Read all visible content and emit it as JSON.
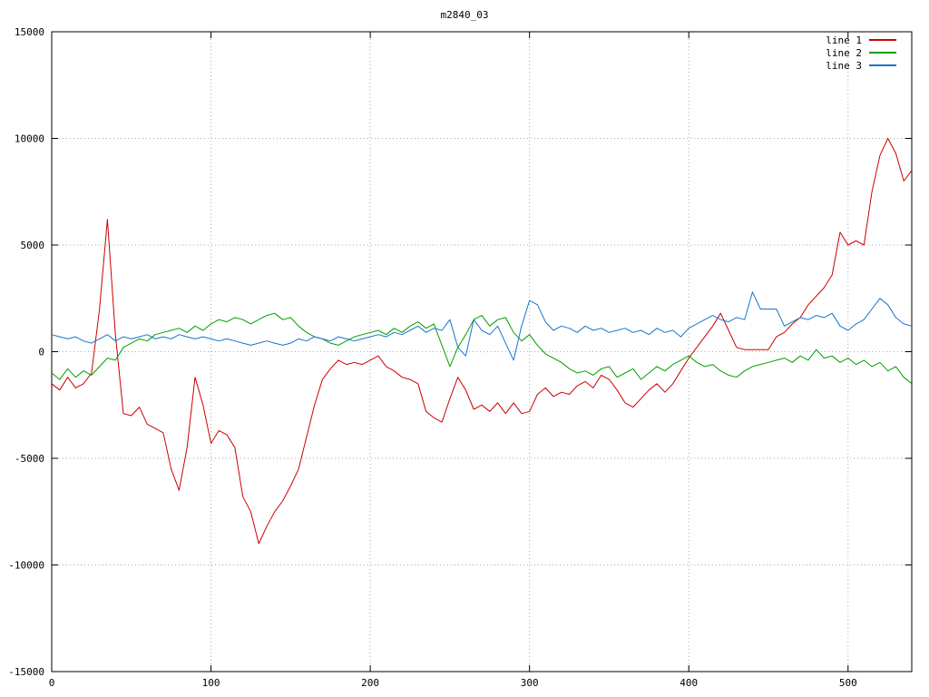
{
  "chart_data": {
    "type": "line",
    "title": "m2840_03",
    "xlabel": "",
    "ylabel": "",
    "xlim": [
      0,
      540
    ],
    "ylim": [
      -15000,
      15000
    ],
    "xticks": [
      0,
      100,
      200,
      300,
      400,
      500
    ],
    "yticks": [
      -15000,
      -10000,
      -5000,
      0,
      5000,
      10000,
      15000
    ],
    "grid": "dotted",
    "legend_position": "top-right",
    "colors": {
      "grid": "#aaaaaa",
      "axis": "#000000",
      "background": "#ffffff"
    },
    "x_start": 0,
    "x_step": 5,
    "series": [
      {
        "name": "line 1",
        "color": "#cc0000",
        "values": [
          -1500,
          -1800,
          -1200,
          -1700,
          -1500,
          -1000,
          2000,
          6200,
          800,
          -2900,
          -3000,
          -2600,
          -3400,
          -3600,
          -3800,
          -5500,
          -6500,
          -4500,
          -1200,
          -2500,
          -4300,
          -3700,
          -3900,
          -4500,
          -6800,
          -7500,
          -9000,
          -8200,
          -7500,
          -7000,
          -6300,
          -5500,
          -4000,
          -2500,
          -1300,
          -800,
          -400,
          -600,
          -500,
          -600,
          -400,
          -200,
          -700,
          -900,
          -1200,
          -1300,
          -1500,
          -2800,
          -3100,
          -3300,
          -2200,
          -1200,
          -1800,
          -2700,
          -2500,
          -2800,
          -2400,
          -2900,
          -2400,
          -2900,
          -2800,
          -2000,
          -1700,
          -2100,
          -1900,
          -2000,
          -1600,
          -1400,
          -1700,
          -1100,
          -1300,
          -1800,
          -2400,
          -2600,
          -2200,
          -1800,
          -1500,
          -1900,
          -1500,
          -900,
          -300,
          200,
          700,
          1200,
          1800,
          1000,
          200,
          100,
          100,
          100,
          100,
          700,
          900,
          1300,
          1600,
          2200,
          2600,
          3000,
          3600,
          5600,
          5000,
          5200,
          5000,
          7500,
          9200,
          10000,
          9300,
          8000,
          8500
        ]
      },
      {
        "name": "line 2",
        "color": "#00a000",
        "values": [
          -1000,
          -1300,
          -800,
          -1200,
          -900,
          -1100,
          -700,
          -300,
          -400,
          200,
          400,
          600,
          500,
          800,
          900,
          1000,
          1100,
          900,
          1200,
          1000,
          1300,
          1500,
          1400,
          1600,
          1500,
          1300,
          1500,
          1700,
          1800,
          1500,
          1600,
          1200,
          900,
          700,
          600,
          400,
          300,
          500,
          700,
          800,
          900,
          1000,
          800,
          1100,
          900,
          1200,
          1400,
          1100,
          1300,
          300,
          -700,
          200,
          800,
          1500,
          1700,
          1200,
          1500,
          1600,
          900,
          500,
          800,
          300,
          -100,
          -300,
          -500,
          -800,
          -1000,
          -900,
          -1100,
          -800,
          -700,
          -1200,
          -1000,
          -800,
          -1300,
          -1000,
          -700,
          -900,
          -600,
          -400,
          -200,
          -500,
          -700,
          -600,
          -900,
          -1100,
          -1200,
          -900,
          -700,
          -600,
          -500,
          -400,
          -300,
          -500,
          -200,
          -400,
          100,
          -300,
          -200,
          -500,
          -300,
          -600,
          -400,
          -700,
          -500,
          -900,
          -700,
          -1200,
          -1500
        ]
      },
      {
        "name": "line 3",
        "color": "#1874cd",
        "values": [
          800,
          700,
          600,
          700,
          500,
          400,
          600,
          800,
          500,
          700,
          600,
          700,
          800,
          600,
          700,
          600,
          800,
          700,
          600,
          700,
          600,
          500,
          600,
          500,
          400,
          300,
          400,
          500,
          400,
          300,
          400,
          600,
          500,
          700,
          600,
          500,
          700,
          600,
          500,
          600,
          700,
          800,
          700,
          900,
          800,
          1000,
          1200,
          900,
          1100,
          1000,
          1500,
          200,
          -200,
          1500,
          1000,
          800,
          1200,
          400,
          -400,
          1200,
          2400,
          2200,
          1400,
          1000,
          1200,
          1100,
          900,
          1200,
          1000,
          1100,
          900,
          1000,
          1100,
          900,
          1000,
          800,
          1100,
          900,
          1000,
          700,
          1100,
          1300,
          1500,
          1700,
          1500,
          1400,
          1600,
          1500,
          2800,
          2000,
          2000,
          2000,
          1200,
          1400,
          1600,
          1500,
          1700,
          1600,
          1800,
          1200,
          1000,
          1300,
          1500,
          2000,
          2500,
          2200,
          1600,
          1300,
          1200
        ]
      }
    ]
  }
}
